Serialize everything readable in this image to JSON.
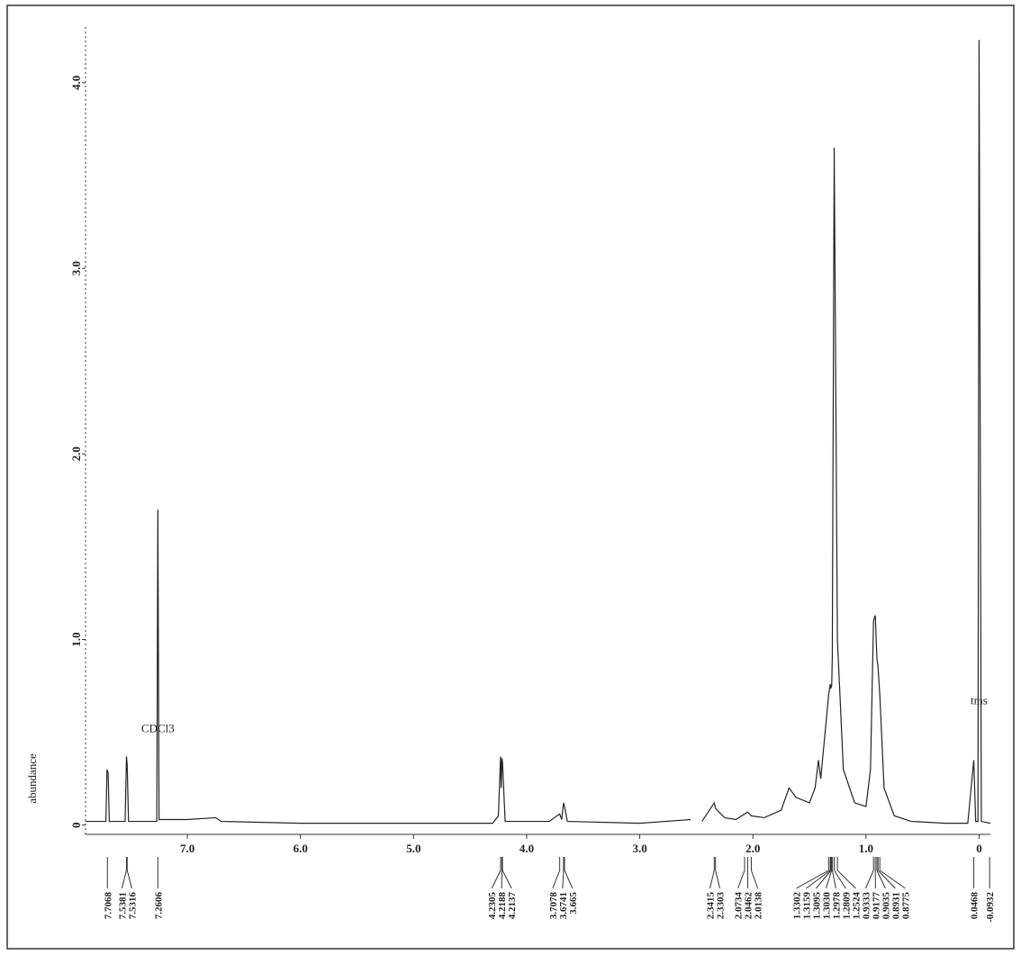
{
  "chart_data": {
    "type": "line",
    "ylabel": "abundance",
    "xlim": [
      7.9,
      -0.1
    ],
    "ylim": [
      -0.05,
      4.3
    ],
    "xticks": [
      {
        "value": 7,
        "label": "7.0"
      },
      {
        "value": 6,
        "label": "6.0"
      },
      {
        "value": 5,
        "label": "5.0"
      },
      {
        "value": 4,
        "label": "4.0"
      },
      {
        "value": 3,
        "label": "3.0"
      },
      {
        "value": 2,
        "label": "2.0"
      },
      {
        "value": 1,
        "label": "1.0"
      },
      0
    ],
    "yticks": [
      0,
      {
        "value": 1,
        "label": "1.0"
      },
      {
        "value": 2,
        "label": "2.0"
      },
      {
        "value": 3,
        "label": "3.0"
      },
      {
        "value": 4,
        "label": "4.0"
      }
    ],
    "color": "#222222",
    "x": [
      7.9,
      7.72,
      7.71,
      7.7,
      7.69,
      7.55,
      7.538,
      7.532,
      7.52,
      7.27,
      7.2606,
      7.25,
      7.0,
      6.75,
      6.7,
      6.0,
      5.0,
      4.3,
      4.25,
      4.2305,
      4.225,
      4.2188,
      4.2137,
      4.19,
      3.8,
      3.7078,
      3.69,
      3.6741,
      3.665,
      3.64,
      3.0,
      2.55,
      2.5,
      2.45,
      2.3415,
      2.3303,
      2.25,
      2.15,
      2.0734,
      2.0462,
      2.0138,
      1.9,
      1.75,
      1.68,
      1.62,
      1.5,
      1.45,
      1.42,
      1.4,
      1.3302,
      1.3159,
      1.3095,
      1.303,
      1.2978,
      1.2809,
      1.2524,
      1.2,
      1.1,
      1.0,
      0.96,
      0.9333,
      0.9177,
      0.9035,
      0.8931,
      0.8775,
      0.84,
      0.75,
      0.6,
      0.3,
      0.1,
      0.0468,
      0.03,
      0.01,
      0.0,
      -0.02,
      -0.1
    ],
    "values": [
      0.02,
      0.02,
      0.3,
      0.28,
      0.02,
      0.02,
      0.37,
      0.33,
      0.02,
      0.02,
      1.7,
      0.03,
      0.03,
      0.04,
      0.02,
      0.01,
      0.01,
      0.01,
      0.05,
      0.37,
      0.2,
      0.36,
      0.34,
      0.02,
      0.02,
      0.06,
      0.03,
      0.12,
      0.1,
      0.02,
      0.01,
      0.03,
      null,
      0.02,
      0.12,
      0.09,
      0.04,
      0.03,
      0.06,
      0.07,
      0.05,
      0.04,
      0.08,
      0.2,
      0.15,
      0.12,
      0.2,
      0.35,
      0.25,
      0.7,
      0.76,
      0.74,
      0.75,
      0.9,
      3.65,
      1.0,
      0.3,
      0.12,
      0.1,
      0.3,
      1.1,
      1.13,
      0.9,
      0.85,
      0.7,
      0.2,
      0.05,
      0.02,
      0.01,
      0.01,
      0.35,
      0.02,
      0.02,
      4.23,
      0.02,
      0.01
    ],
    "annotations": [
      {
        "text": "CDCl3",
        "x": 7.2606,
        "y": 0.5
      },
      {
        "text": "tms",
        "x": 0.0,
        "y": 0.65
      }
    ],
    "peaks": [
      7.7068,
      7.5381,
      7.5316,
      7.2606,
      4.2305,
      4.2188,
      4.2137,
      3.7078,
      3.6741,
      3.665,
      2.3415,
      2.3303,
      2.0734,
      2.0462,
      2.0138,
      1.3302,
      1.3159,
      1.3095,
      {
        "value": 1.303,
        "label": "1.3030"
      },
      1.2978,
      1.2809,
      1.2524,
      0.9333,
      0.9177,
      0.9035,
      0.8931,
      0.8775,
      0.0468,
      -0.0932
    ]
  }
}
